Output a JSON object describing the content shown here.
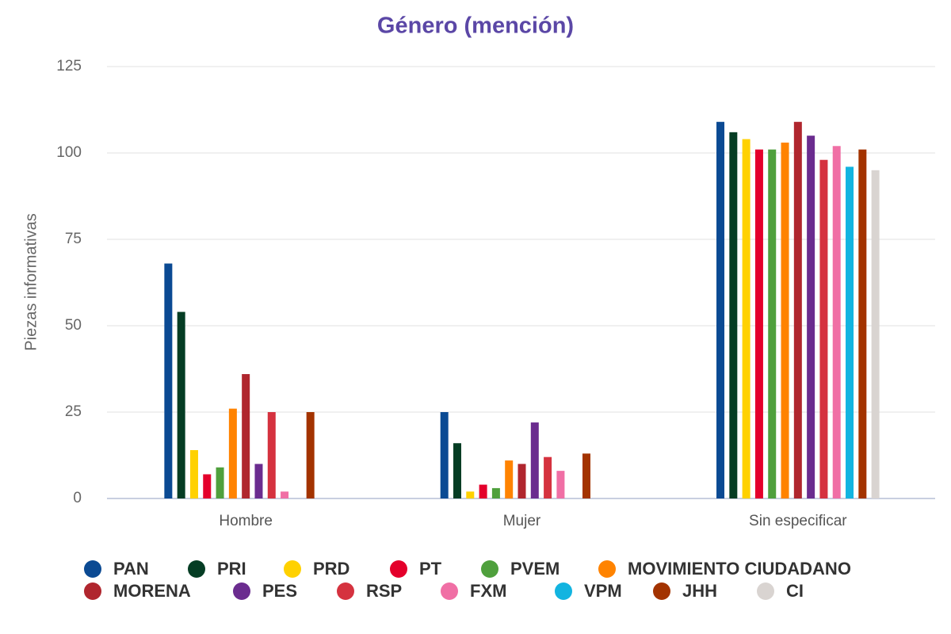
{
  "chart_data": {
    "type": "bar",
    "title": "Género (mención)",
    "y_label": "Piezas informativas",
    "categories": [
      "Hombre",
      "Mujer",
      "Sin especificar"
    ],
    "series": [
      {
        "name": "PAN",
        "color": "#0b4a93",
        "values": [
          68,
          25,
          109
        ]
      },
      {
        "name": "PRI",
        "color": "#053d24",
        "values": [
          54,
          16,
          106
        ]
      },
      {
        "name": "PRD",
        "color": "#ffd100",
        "values": [
          14,
          2,
          104
        ]
      },
      {
        "name": "PT",
        "color": "#e4002b",
        "values": [
          7,
          4,
          101
        ]
      },
      {
        "name": "PVEM",
        "color": "#4fa03d",
        "values": [
          9,
          3,
          101
        ]
      },
      {
        "name": "MOVIMIENTO CIUDADANO",
        "color": "#ff8300",
        "values": [
          26,
          11,
          103
        ]
      },
      {
        "name": "MORENA",
        "color": "#b0262e",
        "values": [
          36,
          10,
          109
        ]
      },
      {
        "name": "PES",
        "color": "#6b2c8f",
        "values": [
          10,
          22,
          105
        ]
      },
      {
        "name": "RSP",
        "color": "#d5323f",
        "values": [
          25,
          12,
          98
        ]
      },
      {
        "name": "FXM",
        "color": "#f06fa5",
        "values": [
          2,
          8,
          102
        ]
      },
      {
        "name": "VPM",
        "color": "#12b4e0",
        "values": [
          0,
          0,
          96
        ]
      },
      {
        "name": "JHH",
        "color": "#a33300",
        "values": [
          25,
          13,
          101
        ]
      },
      {
        "name": "CI",
        "color": "#d9d4d1",
        "values": [
          0,
          0,
          95
        ]
      }
    ],
    "ylim": [
      0,
      125
    ],
    "yticks": [
      0,
      25,
      50,
      75,
      100,
      125
    ],
    "grid": true,
    "legend": "bottom"
  }
}
